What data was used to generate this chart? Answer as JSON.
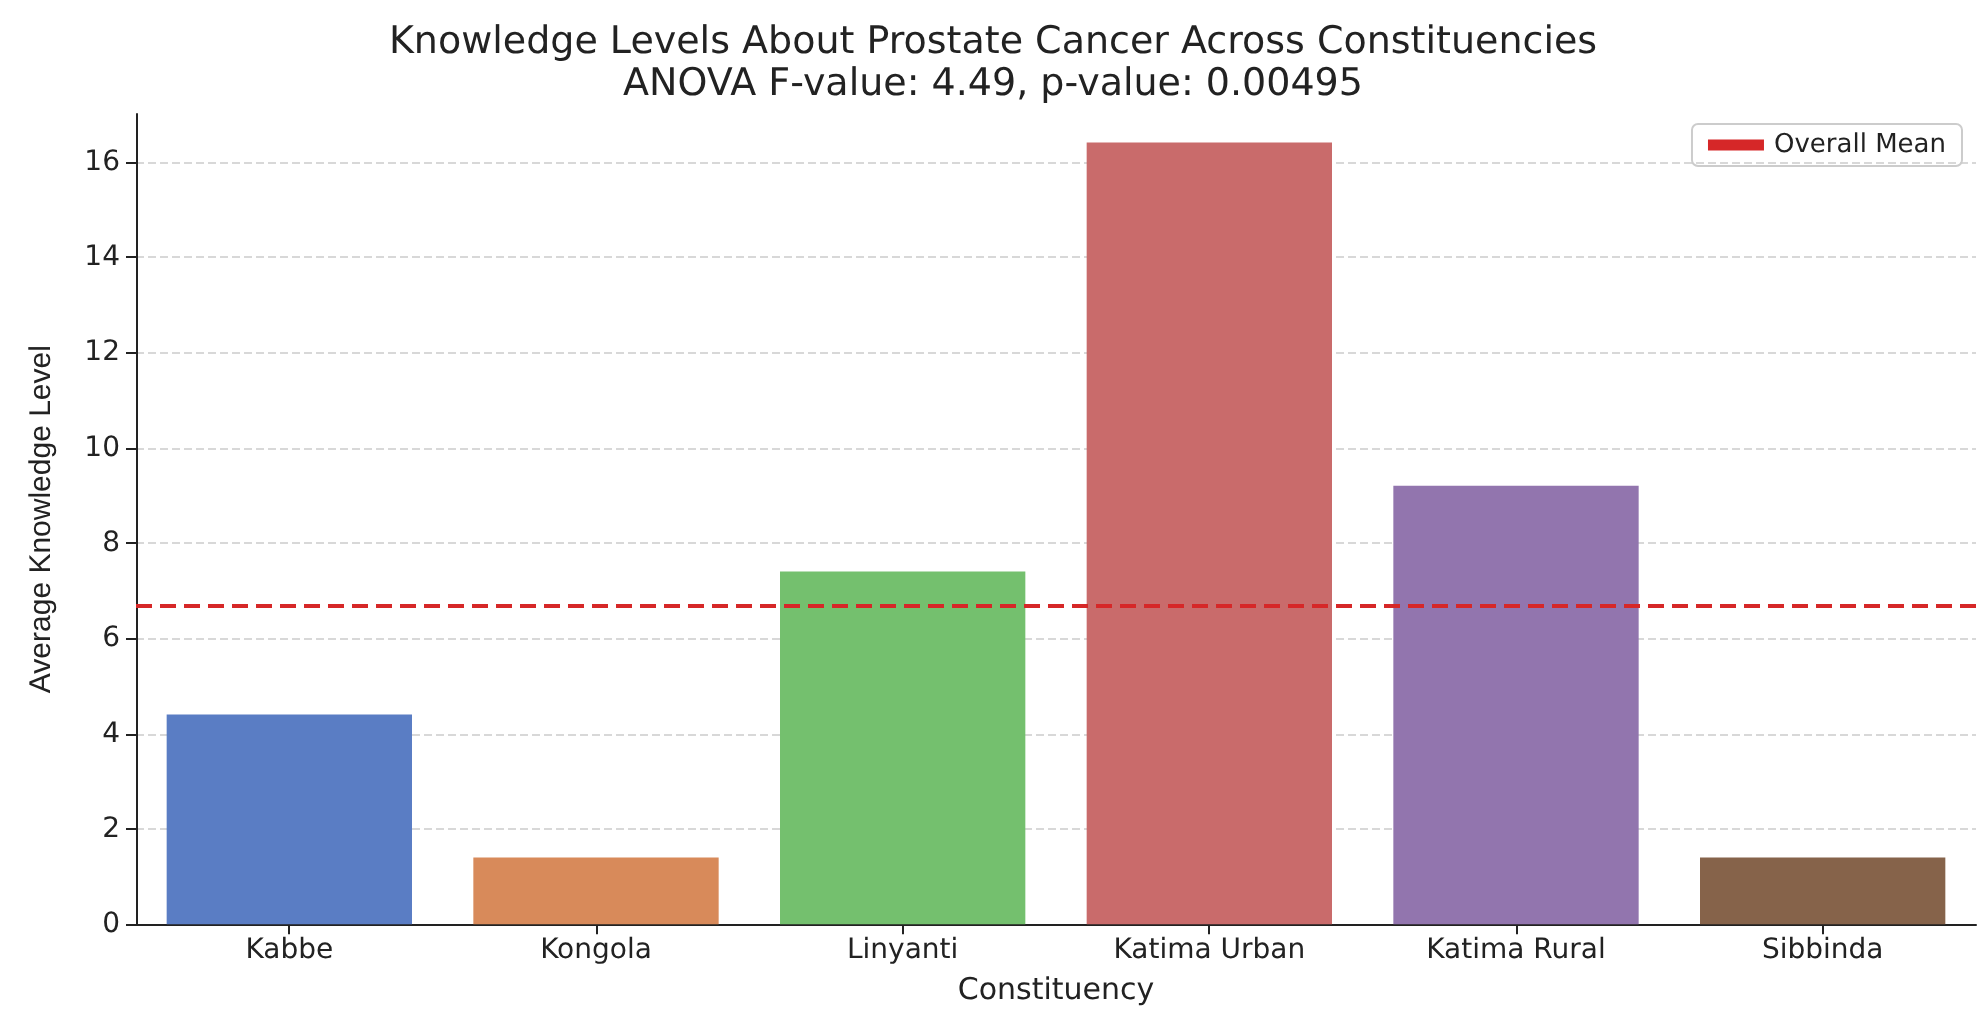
{
  "chart_data": {
    "type": "bar",
    "title": "Knowledge Levels About Prostate Cancer Across Constituencies",
    "subtitle": "ANOVA F-value: 4.49, p-value: 0.00495",
    "xlabel": "Constituency",
    "ylabel": "Average Knowledge Level",
    "categories": [
      "Kabbe",
      "Kongola",
      "Linyanti",
      "Katima Urban",
      "Katima Rural",
      "Sibbinda"
    ],
    "values": [
      4.4,
      1.4,
      7.4,
      16.4,
      9.2,
      1.4
    ],
    "colors": [
      "#5a7dc4",
      "#d88a5a",
      "#74c06e",
      "#c96b6b",
      "#9275ae",
      "#86634a"
    ],
    "ylim": [
      0,
      17
    ],
    "yticks": [
      0,
      2,
      4,
      6,
      8,
      10,
      12,
      14,
      16
    ],
    "grid": "y",
    "legend": "top right",
    "ref_lines": [
      {
        "axis": "y",
        "value": 6.7,
        "label": "Overall Mean",
        "color": "#d62728",
        "line_style": "dashed"
      }
    ]
  }
}
